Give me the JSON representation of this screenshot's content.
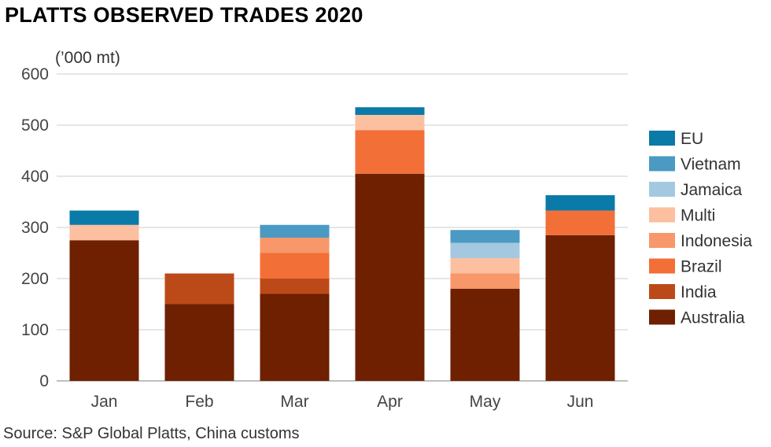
{
  "title": "PLATTS OBSERVED TRADES 2020",
  "source": "Source: S&P Global Platts, China customs",
  "chart_data": {
    "type": "bar",
    "stacked": true,
    "title": "PLATTS OBSERVED TRADES 2020",
    "ylabel": "(’000 mt)",
    "xlabel": "",
    "ylim": [
      0,
      600
    ],
    "yticks": [
      0,
      100,
      200,
      300,
      400,
      500,
      600
    ],
    "grid": true,
    "legend_position": "right",
    "categories": [
      "Jan",
      "Feb",
      "Mar",
      "Apr",
      "May",
      "Jun"
    ],
    "series": [
      {
        "name": "Australia",
        "color": "#6e2000",
        "values": [
          275,
          150,
          170,
          405,
          180,
          285
        ]
      },
      {
        "name": "India",
        "color": "#bc4a18",
        "values": [
          0,
          60,
          30,
          0,
          0,
          0
        ]
      },
      {
        "name": "Brazil",
        "color": "#f26f37",
        "values": [
          0,
          0,
          50,
          85,
          0,
          48
        ]
      },
      {
        "name": "Indonesia",
        "color": "#f7976a",
        "values": [
          0,
          0,
          30,
          0,
          30,
          0
        ]
      },
      {
        "name": "Multi",
        "color": "#fcbf9f",
        "values": [
          30,
          0,
          0,
          30,
          30,
          0
        ]
      },
      {
        "name": "Jamaica",
        "color": "#a4c8e0",
        "values": [
          0,
          0,
          0,
          0,
          30,
          0
        ]
      },
      {
        "name": "Vietnam",
        "color": "#4a9ac4",
        "values": [
          0,
          0,
          25,
          0,
          25,
          0
        ]
      },
      {
        "name": "EU",
        "color": "#0a7aa8",
        "values": [
          28,
          0,
          0,
          15,
          0,
          30
        ]
      }
    ]
  }
}
